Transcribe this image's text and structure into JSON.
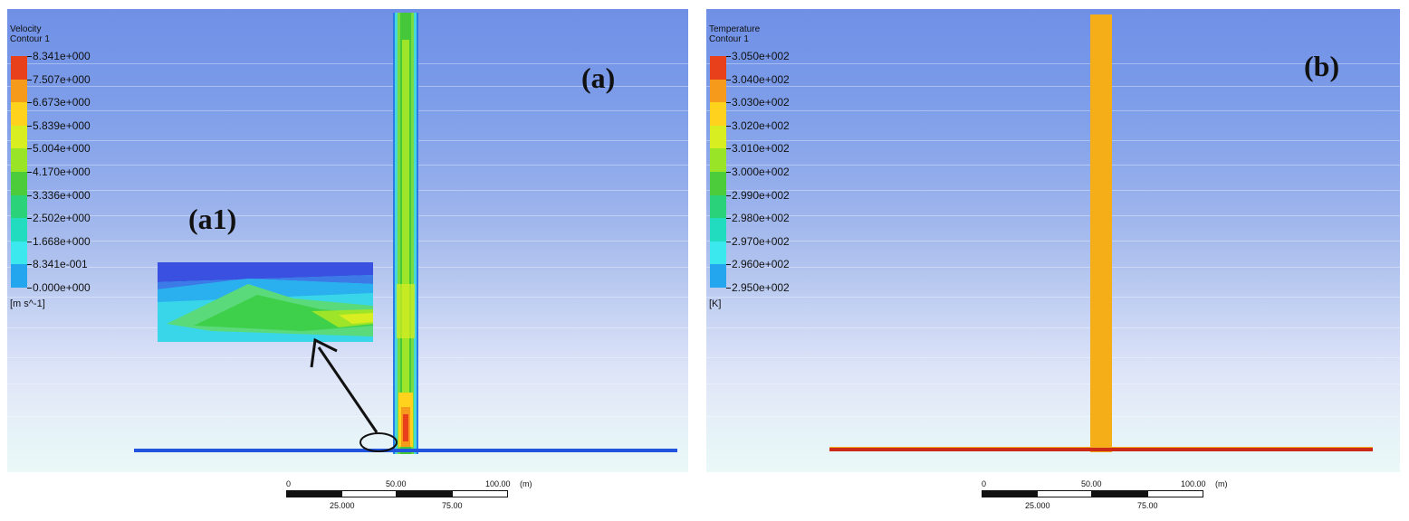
{
  "panel_a": {
    "letter": "(a)",
    "inset_letter": "(a1)",
    "legend": {
      "title_line1": "Velocity",
      "title_line2": "Contour 1",
      "labels": [
        "8.341e+000",
        "7.507e+000",
        "6.673e+000",
        "5.839e+000",
        "5.004e+000",
        "4.170e+000",
        "3.336e+000",
        "2.502e+000",
        "1.668e+000",
        "8.341e-001",
        "0.000e+000"
      ],
      "unit": "[m s^-1]",
      "colors": [
        "#e8401a",
        "#f59a1a",
        "#ffd21e",
        "#d8ee20",
        "#9ae428",
        "#4ccc3a",
        "#2ad27a",
        "#22dcc0",
        "#3ae8ee",
        "#24a6ee",
        "#1a5ae6"
      ]
    }
  },
  "panel_b": {
    "letter": "(b)",
    "legend": {
      "title_line1": "Temperature",
      "title_line2": "Contour 1",
      "labels": [
        "3.050e+002",
        "3.040e+002",
        "3.030e+002",
        "3.020e+002",
        "3.010e+002",
        "3.000e+002",
        "2.990e+002",
        "2.980e+002",
        "2.970e+002",
        "2.960e+002",
        "2.950e+002"
      ],
      "unit": "[K]",
      "colors": [
        "#e8401a",
        "#f59a1a",
        "#ffd21e",
        "#d8ee20",
        "#9ae428",
        "#4ccc3a",
        "#2ad27a",
        "#22dcc0",
        "#3ae8ee",
        "#24a6ee",
        "#1a5ae6"
      ]
    }
  },
  "scale": {
    "top_labels": [
      "0",
      "50.00",
      "100.00",
      "(m)"
    ],
    "bottom_labels": [
      "25.000",
      "75.00"
    ]
  },
  "colors": {
    "ground_line_a": "#2255dd",
    "ground_line_b": "#cc2a18",
    "tower_b": "#f6ae18"
  }
}
